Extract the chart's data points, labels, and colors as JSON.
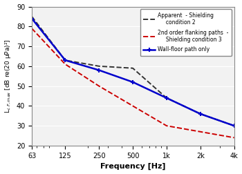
{
  "freqs": [
    63,
    125,
    250,
    500,
    1000,
    2000,
    4000
  ],
  "apparent_shielding2": [
    85,
    63,
    60,
    59,
    44,
    36,
    30
  ],
  "flanking_shielding3": [
    79,
    61,
    50,
    40,
    30,
    27,
    24
  ],
  "wall_floor_only": [
    84,
    63,
    58,
    52,
    44,
    36,
    30
  ],
  "apparent_color": "#333333",
  "flanking_color": "#cc0000",
  "wall_floor_color": "#0000cc",
  "ylabel": "L$_{i,F,max}$ [dB re(20 μPa)²]",
  "xlabel": "Frequency [Hz]",
  "ylim": [
    20,
    90
  ],
  "legend1": "Apparent  - Shielding\n     condition 2",
  "legend2": "2nd order flanking paths  -\n     Shielding condition 3",
  "legend3": "Wall-floor path only",
  "xtick_labels": [
    "63",
    "125",
    "250",
    "500",
    "1k",
    "2k",
    "4k"
  ],
  "ytick_vals": [
    20,
    30,
    40,
    50,
    60,
    70,
    80,
    90
  ],
  "background_color": "#f2f2f2"
}
